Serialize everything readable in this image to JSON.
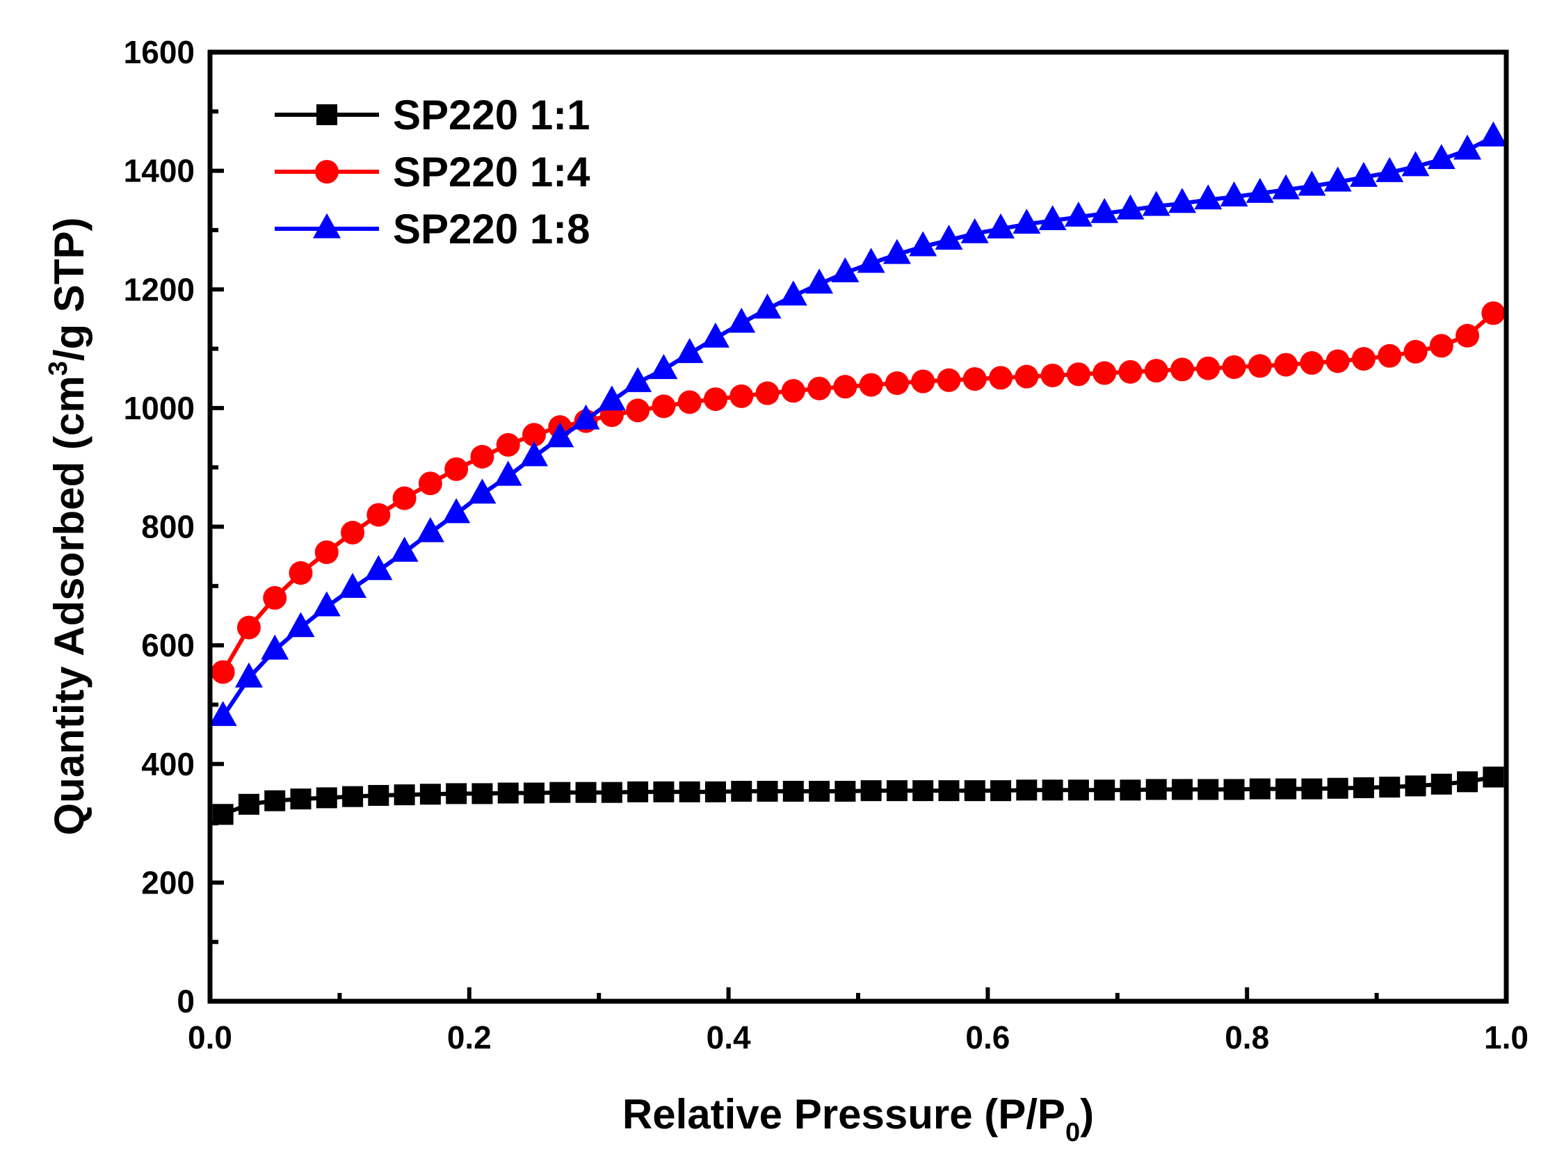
{
  "chart_data": {
    "type": "line",
    "xlabel_main": "Relative Pressure (P/P",
    "xlabel_sub": "0",
    "xlabel_end": ")",
    "ylabel_main": "Quantity Adsorbed (cm",
    "ylabel_sup": "3",
    "ylabel_end": "/g STP)",
    "xlim": [
      0.0,
      1.0
    ],
    "ylim": [
      0,
      1600
    ],
    "x_ticks": [
      "0.0",
      "0.2",
      "0.4",
      "0.6",
      "0.8",
      "1.0"
    ],
    "x_tick_values": [
      0.0,
      0.2,
      0.4,
      0.6,
      0.8,
      1.0
    ],
    "y_ticks": [
      "0",
      "200",
      "400",
      "600",
      "800",
      "1000",
      "1200",
      "1400",
      "1600"
    ],
    "y_tick_values": [
      0,
      200,
      400,
      600,
      800,
      1000,
      1200,
      1400,
      1600
    ],
    "grid": false,
    "legend_position": "top-left",
    "series": [
      {
        "name": "SP220 1:1",
        "color": "#000000",
        "marker": "square",
        "x": [
          0.01,
          0.03,
          0.05,
          0.07,
          0.09,
          0.11,
          0.13,
          0.15,
          0.17,
          0.19,
          0.21,
          0.23,
          0.25,
          0.27,
          0.29,
          0.31,
          0.33,
          0.35,
          0.37,
          0.39,
          0.41,
          0.43,
          0.45,
          0.47,
          0.49,
          0.51,
          0.53,
          0.55,
          0.57,
          0.59,
          0.61,
          0.63,
          0.65,
          0.67,
          0.69,
          0.71,
          0.73,
          0.75,
          0.77,
          0.79,
          0.81,
          0.83,
          0.85,
          0.87,
          0.89,
          0.91,
          0.93,
          0.95,
          0.97,
          0.99
        ],
        "y": [
          315,
          332,
          338,
          341,
          343,
          345,
          347,
          348,
          349,
          350,
          350,
          351,
          351,
          352,
          352,
          352,
          353,
          353,
          353,
          353,
          354,
          354,
          354,
          354,
          354,
          355,
          355,
          355,
          355,
          355,
          355,
          356,
          356,
          356,
          356,
          356,
          357,
          357,
          357,
          357,
          358,
          358,
          358,
          359,
          360,
          361,
          363,
          366,
          370,
          378
        ]
      },
      {
        "name": "SP220 1:4",
        "color": "#ff0000",
        "marker": "circle",
        "x": [
          0.01,
          0.03,
          0.05,
          0.07,
          0.09,
          0.11,
          0.13,
          0.15,
          0.17,
          0.19,
          0.21,
          0.23,
          0.25,
          0.27,
          0.29,
          0.31,
          0.33,
          0.35,
          0.37,
          0.39,
          0.41,
          0.43,
          0.45,
          0.47,
          0.49,
          0.51,
          0.53,
          0.55,
          0.57,
          0.59,
          0.61,
          0.63,
          0.65,
          0.67,
          0.69,
          0.71,
          0.73,
          0.75,
          0.77,
          0.79,
          0.81,
          0.83,
          0.85,
          0.87,
          0.89,
          0.91,
          0.93,
          0.95,
          0.97,
          0.99
        ],
        "y": [
          555,
          630,
          680,
          722,
          757,
          790,
          820,
          848,
          873,
          897,
          918,
          938,
          955,
          968,
          978,
          988,
          996,
          1003,
          1010,
          1015,
          1020,
          1025,
          1029,
          1033,
          1036,
          1039,
          1042,
          1045,
          1047,
          1049,
          1051,
          1053,
          1055,
          1057,
          1059,
          1061,
          1063,
          1065,
          1067,
          1069,
          1071,
          1073,
          1076,
          1079,
          1083,
          1088,
          1095,
          1105,
          1122,
          1160
        ]
      },
      {
        "name": "SP220 1:8",
        "color": "#0000ff",
        "marker": "triangle",
        "x": [
          0.01,
          0.03,
          0.05,
          0.07,
          0.09,
          0.11,
          0.13,
          0.15,
          0.17,
          0.19,
          0.21,
          0.23,
          0.25,
          0.27,
          0.29,
          0.31,
          0.33,
          0.35,
          0.37,
          0.39,
          0.41,
          0.43,
          0.45,
          0.47,
          0.49,
          0.51,
          0.53,
          0.55,
          0.57,
          0.59,
          0.61,
          0.63,
          0.65,
          0.67,
          0.69,
          0.71,
          0.73,
          0.75,
          0.77,
          0.79,
          0.81,
          0.83,
          0.85,
          0.87,
          0.89,
          0.91,
          0.93,
          0.95,
          0.97,
          0.99
        ],
        "y": [
          480,
          545,
          592,
          630,
          665,
          696,
          726,
          757,
          790,
          822,
          855,
          885,
          918,
          950,
          980,
          1012,
          1043,
          1065,
          1092,
          1118,
          1143,
          1167,
          1189,
          1209,
          1228,
          1244,
          1259,
          1272,
          1283,
          1294,
          1302,
          1310,
          1316,
          1322,
          1328,
          1334,
          1340,
          1345,
          1351,
          1356,
          1362,
          1368,
          1374,
          1381,
          1389,
          1397,
          1407,
          1419,
          1435,
          1457
        ]
      }
    ]
  }
}
